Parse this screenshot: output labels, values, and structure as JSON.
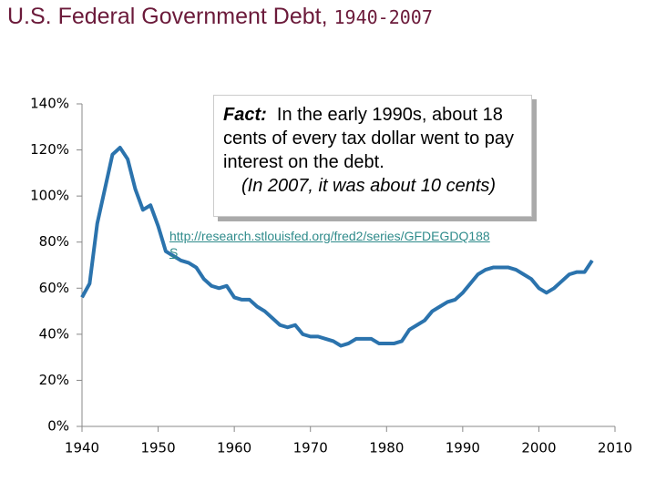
{
  "chart_data": {
    "type": "line",
    "title": "U.S. Federal Government Debt,",
    "subtitle": "1940-2007",
    "annotation": {
      "label": "Fact:",
      "text": "In the early 1990s, about 18 cents of every tax dollar went to pay interest on the debt.",
      "note": "(In 2007, it was about 10 cents)"
    },
    "source": "http://research.stlouisfed.org/fred2/series/GFDEGDQ188S",
    "x": [
      1940,
      1941,
      1942,
      1943,
      1944,
      1945,
      1946,
      1947,
      1948,
      1949,
      1950,
      1951,
      1952,
      1953,
      1954,
      1955,
      1956,
      1957,
      1958,
      1959,
      1960,
      1961,
      1962,
      1963,
      1964,
      1965,
      1966,
      1967,
      1968,
      1969,
      1970,
      1971,
      1972,
      1973,
      1974,
      1975,
      1976,
      1977,
      1978,
      1979,
      1980,
      1981,
      1982,
      1983,
      1984,
      1985,
      1986,
      1987,
      1988,
      1989,
      1990,
      1991,
      1992,
      1993,
      1994,
      1995,
      1996,
      1997,
      1998,
      1999,
      2000,
      2001,
      2002,
      2003,
      2004,
      2005,
      2006,
      2007
    ],
    "values": [
      56,
      62,
      88,
      103,
      118,
      121,
      116,
      103,
      94,
      96,
      87,
      76,
      74,
      72,
      71,
      69,
      64,
      61,
      60,
      61,
      56,
      55,
      55,
      52,
      50,
      47,
      44,
      43,
      44,
      40,
      39,
      39,
      38,
      37,
      35,
      36,
      38,
      38,
      38,
      36,
      36,
      36,
      37,
      42,
      44,
      46,
      50,
      52,
      54,
      55,
      58,
      62,
      66,
      68,
      69,
      69,
      69,
      68,
      66,
      64,
      60,
      58,
      60,
      63,
      66,
      67,
      67,
      72
    ],
    "color": "#2b73ad",
    "xlim": [
      1940,
      2010
    ],
    "xticks": [
      1940,
      1950,
      1960,
      1970,
      1980,
      1990,
      2000,
      2010
    ],
    "ylim": [
      0,
      140
    ],
    "yticks": [
      {
        "value": 0,
        "label": "0%"
      },
      {
        "value": 20,
        "label": "20%"
      },
      {
        "value": 40,
        "label": "40%"
      },
      {
        "value": 60,
        "label": "60%"
      },
      {
        "value": 80,
        "label": "80%"
      },
      {
        "value": 100,
        "label": "100%"
      },
      {
        "value": 120,
        "label": "120%"
      },
      {
        "value": 140,
        "label": "140%"
      }
    ]
  }
}
